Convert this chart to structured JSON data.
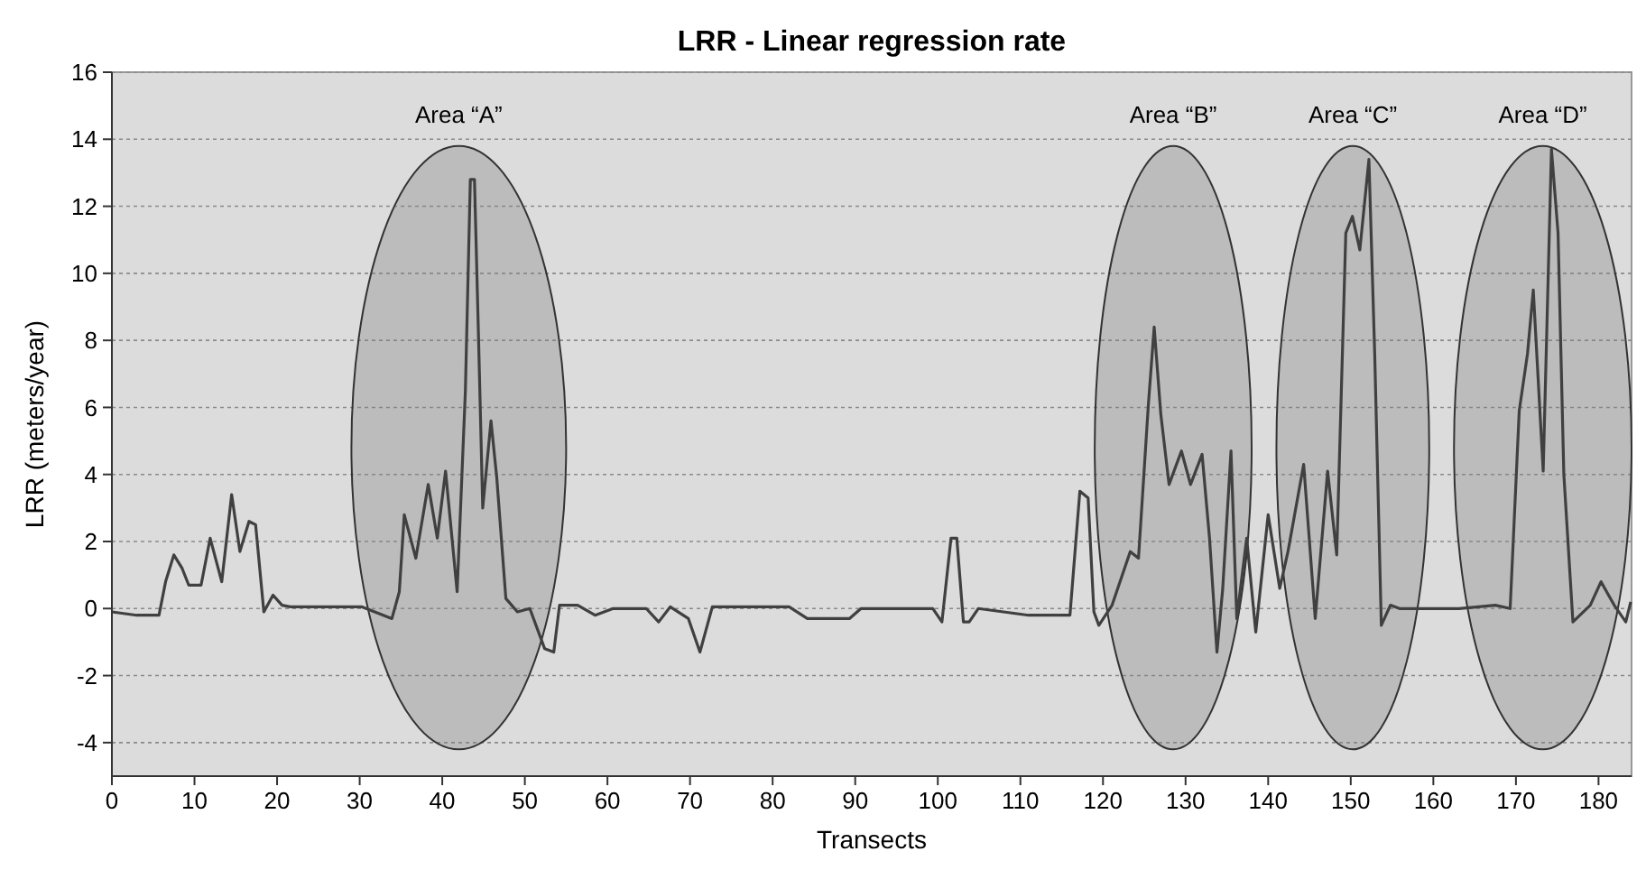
{
  "chart_data": {
    "type": "line",
    "title": "LRR - Linear regression rate",
    "xlabel": "Transects",
    "ylabel": "LRR (meters/year)",
    "xlim": [
      0,
      184
    ],
    "xticks": [
      0,
      10,
      20,
      30,
      40,
      50,
      60,
      70,
      80,
      90,
      100,
      110,
      120,
      130,
      140,
      150,
      160,
      170,
      180
    ],
    "ylim": [
      -5,
      16
    ],
    "yticks": [
      -4,
      -2,
      0,
      2,
      4,
      6,
      8,
      10,
      12,
      14,
      16
    ],
    "grid": "y",
    "annotations": [
      "Area “A”",
      "Area “B”",
      "Area “C”",
      "Area “D”"
    ],
    "series": [
      {
        "color": "#404040",
        "x": [
          0,
          3,
          5.7,
          6.5,
          7.5,
          8.5,
          9.3,
          10.8,
          11.9,
          13.3,
          14.5,
          15.5,
          16.6,
          17.4,
          18.4,
          19.5,
          20.6,
          21.6,
          30.3,
          33.9,
          34.8,
          35.4,
          36.8,
          38.3,
          39.4,
          40.4,
          41.8,
          42.8,
          43.4,
          43.9,
          44.4,
          44.9,
          45.9,
          46.6,
          47.7,
          49.1,
          50.6,
          52.4,
          53.5,
          54.2,
          56.4,
          58.5,
          60.7,
          64.7,
          66.2,
          67.6,
          69.8,
          71.2,
          72.7,
          74.8,
          82,
          84.2,
          89.3,
          90.7,
          99.4,
          100.5,
          101.6,
          102.3,
          103.1,
          103.8,
          104.9,
          111,
          116,
          117.2,
          118.2,
          118.9,
          119.5,
          121.1,
          123.3,
          124.3,
          125.5,
          126.2,
          127,
          128,
          129.5,
          130.6,
          132,
          132.9,
          133.8,
          134.5,
          135.5,
          136.2,
          137.4,
          138.5,
          140,
          141.4,
          142.4,
          144.3,
          145.7,
          147.2,
          148.3,
          149.4,
          150.2,
          151.1,
          152.2,
          152.9,
          153.7,
          154.8,
          155.9,
          163.1,
          167.5,
          169.3,
          170.4,
          171.4,
          172.1,
          173.3,
          174.3,
          175.1,
          175.8,
          176.9,
          179,
          180.3,
          181.9,
          183.3,
          183.9
        ],
        "values": [
          -0.1,
          -0.2,
          -0.2,
          0.8,
          1.6,
          1.2,
          0.7,
          0.7,
          2.1,
          0.8,
          3.4,
          1.7,
          2.6,
          2.5,
          -0.1,
          0.4,
          0.1,
          0.05,
          0.05,
          -0.3,
          0.5,
          2.8,
          1.5,
          3.7,
          2.1,
          4.1,
          0.5,
          6.5,
          12.8,
          12.8,
          8,
          3,
          5.6,
          3.9,
          0.3,
          -0.1,
          0,
          -1.2,
          -1.3,
          0.1,
          0.1,
          -0.2,
          0,
          0,
          -0.4,
          0.05,
          -0.3,
          -1.3,
          0.05,
          0.05,
          0.05,
          -0.3,
          -0.3,
          0,
          0,
          -0.4,
          2.1,
          2.1,
          -0.4,
          -0.4,
          0,
          -0.2,
          -0.2,
          3.5,
          3.3,
          -0.1,
          -0.5,
          0.1,
          1.7,
          1.5,
          6.1,
          8.4,
          5.8,
          3.7,
          4.7,
          3.7,
          4.6,
          2.1,
          -1.3,
          0.6,
          4.7,
          -0.3,
          2.1,
          -0.7,
          2.8,
          0.6,
          1.7,
          4.3,
          -0.3,
          4.1,
          1.6,
          11.2,
          11.7,
          10.7,
          13.4,
          7.6,
          -0.5,
          0.1,
          0,
          0,
          0.1,
          0,
          5.9,
          7.6,
          9.5,
          4.1,
          13.7,
          11.2,
          4,
          -0.4,
          0.1,
          0.8,
          0.1,
          -0.4,
          0.2
        ]
      }
    ]
  }
}
